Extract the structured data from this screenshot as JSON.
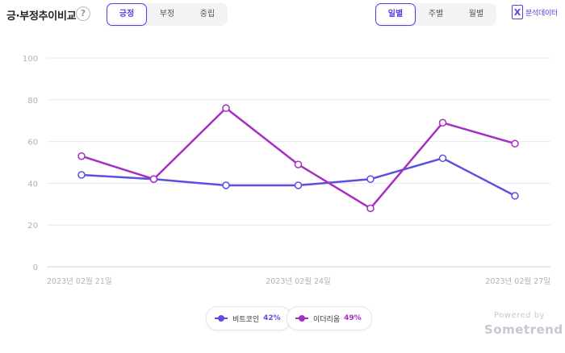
{
  "header": {
    "title": "긍·부정추이비교",
    "help_symbol": "?",
    "sentiment_tabs": [
      {
        "label": "긍정",
        "active": true
      },
      {
        "label": "부정",
        "active": false
      },
      {
        "label": "중립",
        "active": false
      }
    ],
    "period_tabs": [
      {
        "label": "일별",
        "active": true
      },
      {
        "label": "주별",
        "active": false
      },
      {
        "label": "월별",
        "active": false
      }
    ],
    "analysis_icon": "X",
    "analysis_label": "분석데이터"
  },
  "colors": {
    "accent": "#5b3ce0",
    "series_bitcoin": "#5a4fe0",
    "series_ethereum": "#a62ec2"
  },
  "chart_data": {
    "type": "line",
    "x": [
      "2023-02-21",
      "2023-02-22",
      "2023-02-23",
      "2023-02-24",
      "2023-02-25",
      "2023-02-26",
      "2023-02-27"
    ],
    "x_tick_labels": [
      "2023년 02월 21일",
      "2023년 02월 24일",
      "2023년 02월 27일"
    ],
    "y_ticks": [
      "0",
      "20",
      "40",
      "60",
      "80",
      "100"
    ],
    "ylim": [
      0,
      100
    ],
    "grid": true,
    "legend": "bottom-center",
    "series": [
      {
        "name": "비트코인",
        "percent": "42%",
        "color": "#5a4fe0",
        "values": [
          44,
          42,
          39,
          39,
          42,
          52,
          34
        ]
      },
      {
        "name": "이더리움",
        "percent": "49%",
        "color": "#a62ec2",
        "values": [
          53,
          42,
          76,
          49,
          28,
          69,
          59
        ]
      }
    ]
  },
  "footer": {
    "powered_by": "Powered by",
    "brand": "Sometrend"
  }
}
